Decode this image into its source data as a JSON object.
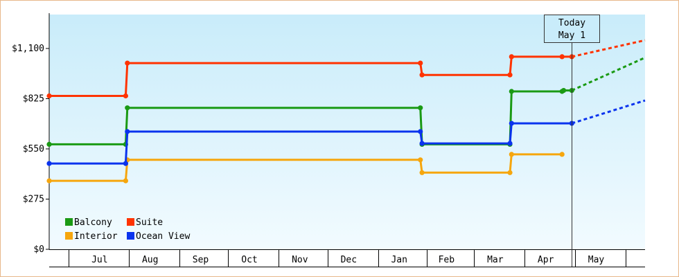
{
  "chart_data": {
    "type": "line",
    "step": true,
    "title": "",
    "xlabel": "",
    "ylabel": "",
    "ylim": [
      0,
      1100
    ],
    "y_ticks": [
      {
        "value": 0,
        "label": "$0"
      },
      {
        "value": 275,
        "label": "$275"
      },
      {
        "value": 550,
        "label": "$550"
      },
      {
        "value": 825,
        "label": "$825"
      },
      {
        "value": 1100,
        "label": "$1,100"
      }
    ],
    "x_start": "2023-06-15",
    "x_end": "2023-05-29",
    "x_labels": [
      "Jul",
      "Aug",
      "Sep",
      "Oct",
      "Nov",
      "Dec",
      "Jan",
      "Feb",
      "Mar",
      "Apr",
      "May"
    ],
    "x_label_dates": [
      "2023-07-16",
      "2023-08-16",
      "2023-09-16",
      "2023-10-16",
      "2023-11-16",
      "2023-12-16",
      "2024-01-16",
      "2024-02-14",
      "2024-03-15",
      "2024-04-15",
      "2024-05-16"
    ],
    "x_boundaries": [
      "2023-06-27",
      "2023-08-03",
      "2023-09-03",
      "2023-10-03",
      "2023-11-03",
      "2023-12-03",
      "2024-01-03",
      "2024-02-02",
      "2024-03-02",
      "2024-04-02",
      "2024-05-03",
      "2024-06-03"
    ],
    "today": {
      "date": "2024-05-01",
      "label_line1": "Today",
      "label_line2": "May 1"
    },
    "legend_position": "bottom-left",
    "grid": false,
    "background": {
      "top": "#c9ecfa",
      "bottom": "#f2fbff"
    },
    "series": [
      {
        "name": "Balcony",
        "color": "#1a9a14",
        "points": [
          [
            "2023-06-15",
            575
          ],
          [
            "2023-08-01",
            575
          ],
          [
            "2023-08-02",
            775
          ],
          [
            "2024-01-29",
            775
          ],
          [
            "2024-01-30",
            575
          ],
          [
            "2024-03-24",
            575
          ],
          [
            "2024-03-25",
            865
          ],
          [
            "2024-04-25",
            865
          ],
          [
            "2024-04-26",
            870
          ],
          [
            "2024-05-01",
            870
          ]
        ],
        "forecast": [
          [
            "2024-05-01",
            870
          ],
          [
            "2024-06-15",
            1050
          ]
        ]
      },
      {
        "name": "Suite",
        "color": "#ff3300",
        "points": [
          [
            "2023-06-15",
            840
          ],
          [
            "2023-08-01",
            840
          ],
          [
            "2023-08-02",
            1020
          ],
          [
            "2024-01-29",
            1020
          ],
          [
            "2024-01-30",
            955
          ],
          [
            "2024-03-24",
            955
          ],
          [
            "2024-03-25",
            1055
          ],
          [
            "2024-04-25",
            1055
          ],
          [
            "2024-05-01",
            1055
          ]
        ],
        "forecast": [
          [
            "2024-05-01",
            1055
          ],
          [
            "2024-06-15",
            1145
          ]
        ]
      },
      {
        "name": "Interior",
        "color": "#f6a60d",
        "points": [
          [
            "2023-06-15",
            375
          ],
          [
            "2023-08-01",
            375
          ],
          [
            "2023-08-02",
            490
          ],
          [
            "2024-01-29",
            490
          ],
          [
            "2024-01-30",
            420
          ],
          [
            "2024-03-24",
            420
          ],
          [
            "2024-03-25",
            520
          ],
          [
            "2024-04-25",
            520
          ]
        ],
        "forecast": []
      },
      {
        "name": "Ocean View",
        "color": "#0a33ee",
        "points": [
          [
            "2023-06-15",
            470
          ],
          [
            "2023-08-01",
            470
          ],
          [
            "2023-08-02",
            645
          ],
          [
            "2024-01-29",
            645
          ],
          [
            "2024-01-30",
            580
          ],
          [
            "2024-03-24",
            580
          ],
          [
            "2024-03-25",
            690
          ],
          [
            "2024-05-01",
            690
          ]
        ],
        "forecast": [
          [
            "2024-05-01",
            690
          ],
          [
            "2024-06-15",
            815
          ]
        ]
      }
    ],
    "legend_order": [
      "Balcony",
      "Suite",
      "Interior",
      "Ocean View"
    ]
  }
}
